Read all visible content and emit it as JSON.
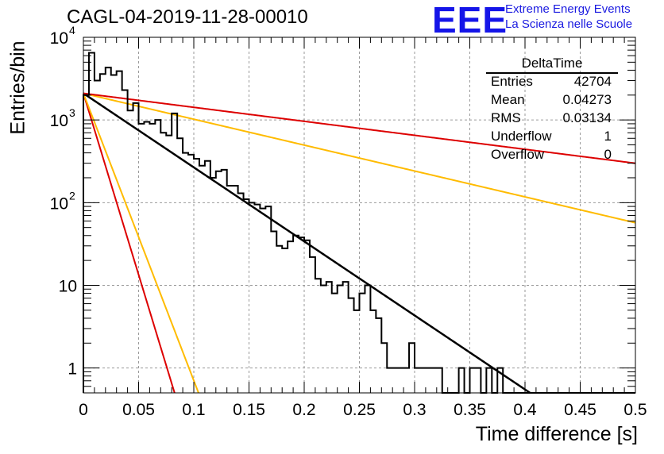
{
  "chart_data": {
    "type": "line",
    "title": "CAGL-04-2019-11-28-00010",
    "xlabel": "Time difference [s]",
    "ylabel": "Entries/bin",
    "xlim": [
      0,
      0.5
    ],
    "ylim": [
      0.5,
      10000
    ],
    "yscale": "log",
    "grid": true,
    "x_ticks": [
      "0",
      "0.05",
      "0.1",
      "0.15",
      "0.2",
      "0.25",
      "0.3",
      "0.35",
      "0.4",
      "0.45",
      "0.5"
    ],
    "y_ticks": [
      {
        "value": 1,
        "label": "1"
      },
      {
        "value": 10,
        "label": "10"
      },
      {
        "value": 100,
        "label": "10",
        "exp": "2"
      },
      {
        "value": 1000,
        "label": "10",
        "exp": "3"
      },
      {
        "value": 10000,
        "label": "10",
        "exp": "4"
      }
    ],
    "histogram": {
      "name": "DeltaTime",
      "bin_width": 0.005,
      "color": "#000000",
      "values": [
        2000,
        6500,
        3000,
        3600,
        4300,
        3500,
        3900,
        2300,
        1300,
        1600,
        900,
        950,
        900,
        1000,
        700,
        650,
        1200,
        600,
        400,
        380,
        340,
        280,
        320,
        200,
        240,
        250,
        160,
        160,
        130,
        110,
        100,
        95,
        85,
        90,
        45,
        30,
        28,
        34,
        40,
        38,
        35,
        22,
        12,
        10,
        11,
        8,
        10,
        11,
        7,
        5,
        8,
        10,
        5,
        4,
        2,
        1,
        1,
        1,
        1,
        2,
        1,
        1,
        1,
        1,
        1,
        0,
        0,
        0.5,
        1,
        0.5,
        1,
        1,
        0.5,
        1,
        0.5,
        1,
        0.5,
        0,
        0,
        0,
        0,
        0,
        0,
        0,
        0,
        0,
        0,
        0,
        0,
        0,
        0,
        0,
        0,
        0,
        0,
        0,
        0,
        0,
        0,
        0
      ]
    },
    "series": [
      {
        "color": "#000000",
        "type": "exponential",
        "y0": 2100,
        "tau": 0.0485
      },
      {
        "color": "#dd0000",
        "type": "exponential",
        "y0": 2100,
        "tau": 0.0099
      },
      {
        "color": "#ffbb00",
        "type": "exponential",
        "y0": 2100,
        "tau": 0.0125
      },
      {
        "color": "#ffbb00",
        "type": "exponential",
        "y0": 2100,
        "tau": 0.1387
      },
      {
        "color": "#dd0000",
        "type": "exponential",
        "y0": 2100,
        "tau": 0.2567
      }
    ],
    "stats": {
      "title": "DeltaTime",
      "rows": [
        {
          "label": "Entries",
          "value": "42704"
        },
        {
          "label": "Mean",
          "value": "0.04273"
        },
        {
          "label": "RMS",
          "value": "0.03134"
        },
        {
          "label": "Underflow",
          "value": "1"
        },
        {
          "label": "Overflow",
          "value": "0"
        }
      ]
    }
  },
  "logo": {
    "text": "EEE",
    "line1": "Extreme Energy Events",
    "line2": "La Scienza nelle Scuole",
    "color": "#1515e8"
  }
}
